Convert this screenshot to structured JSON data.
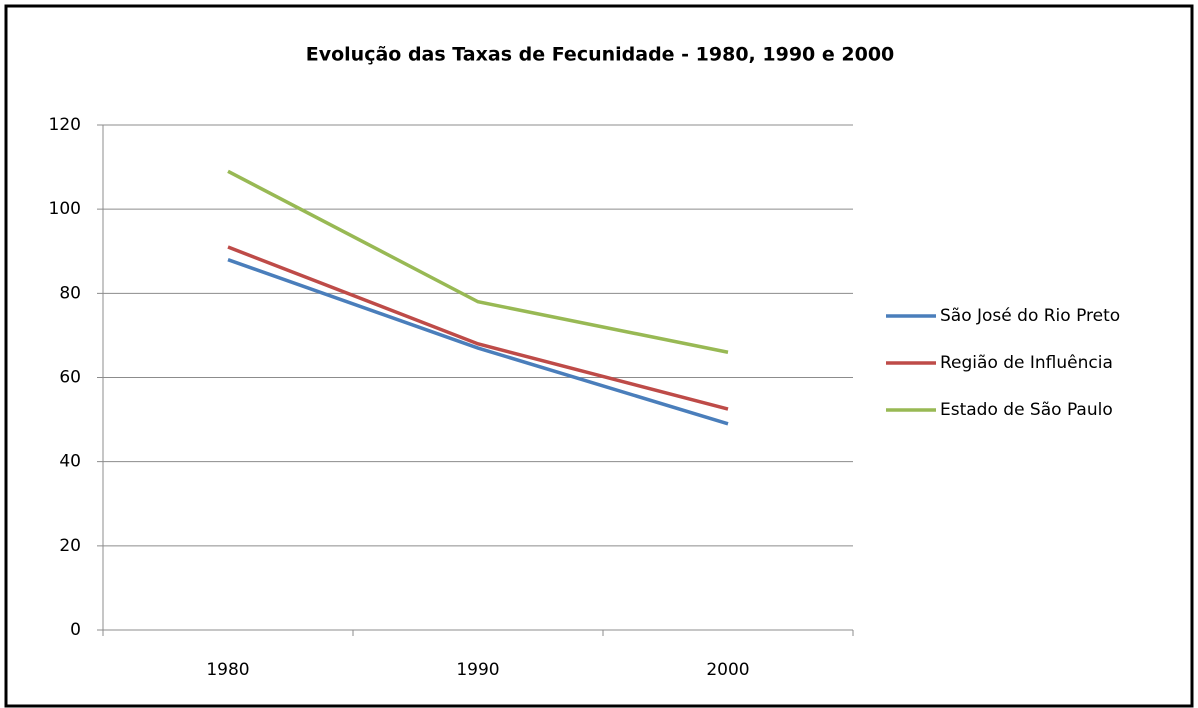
{
  "chart_data": {
    "type": "line",
    "title": "Evolução das Taxas de Fecunidade - 1980, 1990 e 2000",
    "categories": [
      "1980",
      "1990",
      "2000"
    ],
    "series": [
      {
        "name": "São José do Rio Preto",
        "color": "#4a7ebb",
        "values": [
          88,
          67,
          49
        ]
      },
      {
        "name": "Região de Influência",
        "color": "#be4b48",
        "values": [
          91,
          68,
          52.5
        ]
      },
      {
        "name": "Estado de São Paulo",
        "color": "#98b954",
        "values": [
          109,
          78,
          66
        ]
      }
    ],
    "ylim": [
      0,
      120
    ],
    "yticks": [
      0,
      20,
      40,
      60,
      80,
      100,
      120
    ],
    "grid": true,
    "legend": "right"
  }
}
